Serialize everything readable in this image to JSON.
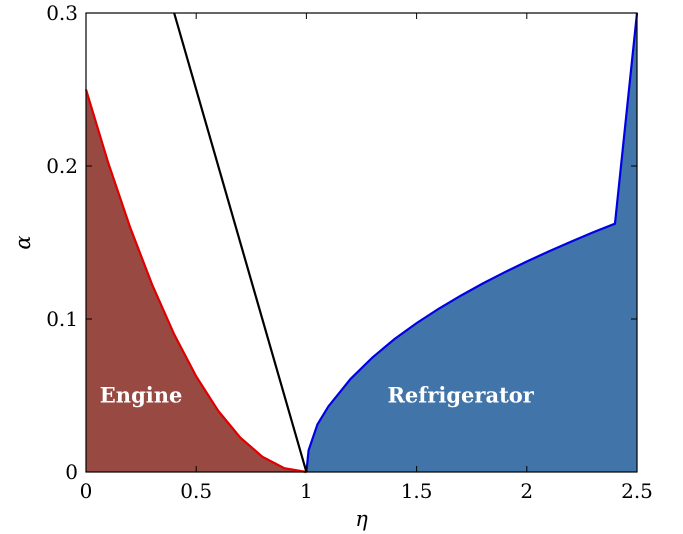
{
  "chart_data": {
    "type": "area",
    "title": "",
    "xlabel": "η",
    "ylabel": "α",
    "xlim": [
      0,
      2.5
    ],
    "ylim": [
      0,
      0.3
    ],
    "x_ticks": [
      0,
      0.5,
      1,
      1.5,
      2,
      2.5
    ],
    "x_tick_labels": [
      "0",
      "0.5",
      "1",
      "1.5",
      "2",
      "2.5"
    ],
    "y_ticks": [
      0,
      0.1,
      0.2,
      0.3
    ],
    "y_tick_labels": [
      "0",
      "0.1",
      "0.2",
      "0.3"
    ],
    "grid": false,
    "legend": "none",
    "series": [
      {
        "color": "#e00000",
        "fill": "#984a42",
        "x": [
          0,
          0.1,
          0.2,
          0.3,
          0.4,
          0.5,
          0.6,
          0.7,
          0.8,
          0.9,
          1.0
        ],
        "y": [
          0.25,
          0.2025,
          0.16,
          0.1225,
          0.09,
          0.0625,
          0.04,
          0.0225,
          0.01,
          0.0025,
          0
        ]
      },
      {
        "color": "#000000",
        "fill": "none",
        "x": [
          0.4,
          1.0
        ],
        "y": [
          0.3,
          0
        ]
      },
      {
        "color": "#0000e6",
        "fill": "#4174a8",
        "x": [
          1.0,
          1.01,
          1.05,
          1.1,
          1.2,
          1.3,
          1.4,
          1.5,
          1.6,
          1.7,
          1.8,
          1.9,
          2.0,
          2.1,
          2.2,
          2.3,
          2.4,
          2.5
        ],
        "y": [
          0,
          0.0142,
          0.0311,
          0.0429,
          0.0608,
          0.0749,
          0.0869,
          0.0973,
          0.1067,
          0.1152,
          0.1232,
          0.1306,
          0.1376,
          0.1442,
          0.1505,
          0.1566,
          0.1623,
          0.3
        ]
      }
    ],
    "annotations": [
      {
        "text": "Engine",
        "x": 0.25,
        "y": 0.05
      },
      {
        "text": "Refrigerator",
        "x": 1.7,
        "y": 0.05
      }
    ]
  }
}
